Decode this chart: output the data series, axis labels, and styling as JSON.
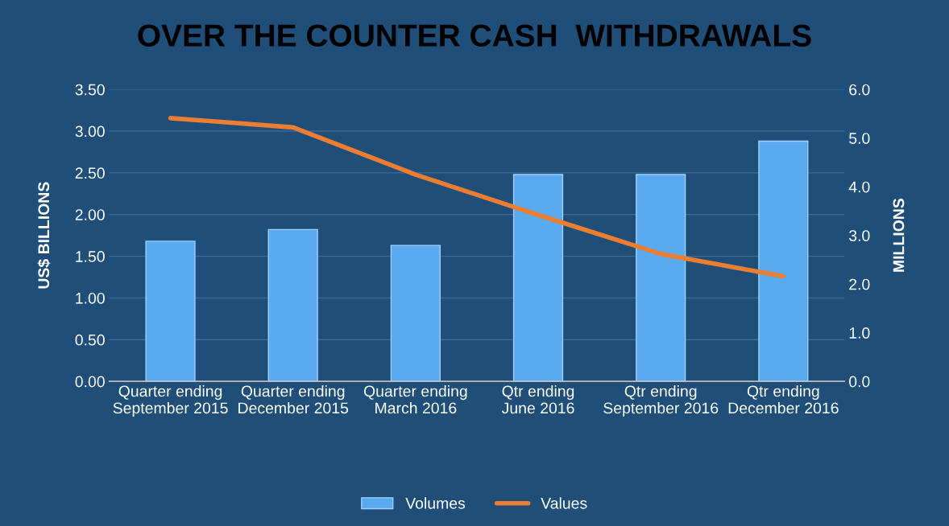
{
  "chart_data": {
    "type": "bar",
    "title": "OVER THE COUNTER CASH  WITHDRAWALS",
    "ylabel": "US$ BILLIONS",
    "y2label": "MILLIONS",
    "categories": [
      "Quarter ending September 2015",
      "Quarter ending December 2015",
      "Quarter ending March 2016",
      "Qtr ending June 2016",
      "Qtr ending September 2016",
      "Qtr ending December 2016"
    ],
    "series": [
      {
        "name": "Volumes",
        "color": "#5aaaf0",
        "values": [
          1.68,
          1.82,
          1.63,
          2.48,
          2.48,
          2.88
        ]
      },
      {
        "name": "Values",
        "type": "line",
        "axis": "y2",
        "color": "#ed7d31",
        "values": [
          5.41,
          5.22,
          4.25,
          3.42,
          2.62,
          2.16
        ]
      }
    ],
    "ylim": [
      0,
      3.5
    ],
    "yticks": [
      {
        "value": 0,
        "label": "0.00"
      },
      {
        "value": 0.5,
        "label": "0.50"
      },
      {
        "value": 1,
        "label": "1.00"
      },
      {
        "value": 1.5,
        "label": "1.50"
      },
      {
        "value": 2,
        "label": "2.00"
      },
      {
        "value": 2.5,
        "label": "2.50"
      },
      {
        "value": 3,
        "label": "3.00"
      },
      {
        "value": 3.5,
        "label": "3.50"
      }
    ],
    "y2lim": [
      0,
      6
    ],
    "y2ticks": [
      {
        "value": 0,
        "label": "0.0"
      },
      {
        "value": 1,
        "label": "1.0"
      },
      {
        "value": 2,
        "label": "2.0"
      },
      {
        "value": 3,
        "label": "3.0"
      },
      {
        "value": 4,
        "label": "4.0"
      },
      {
        "value": 5,
        "label": "5.0"
      },
      {
        "value": 6,
        "label": "6.0"
      }
    ],
    "grid": "y",
    "legend": "bottom",
    "marker": "none",
    "line_style": "solid"
  }
}
